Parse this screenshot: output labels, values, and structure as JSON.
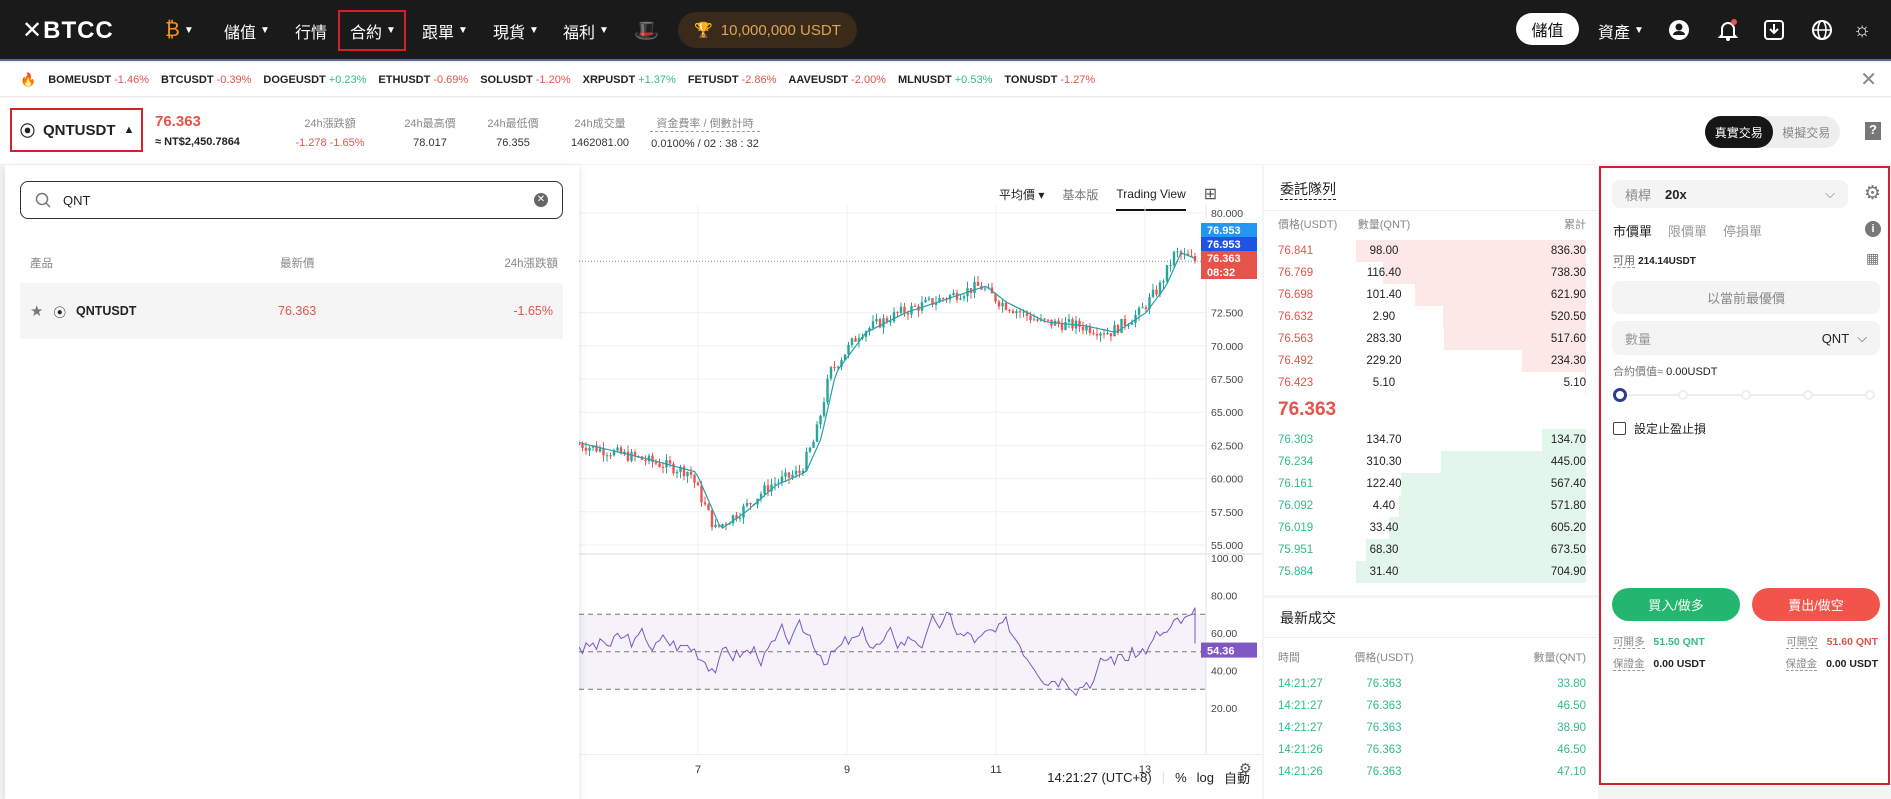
{
  "header": {
    "logo": "BTCC",
    "nav": [
      {
        "label": "儲值",
        "caret": true
      },
      {
        "label": "行情",
        "caret": false
      },
      {
        "label": "合約",
        "caret": true
      },
      {
        "label": "跟單",
        "caret": true
      },
      {
        "label": "現貨",
        "caret": true
      },
      {
        "label": "福利",
        "caret": true
      }
    ],
    "balance": "10,000,000 USDT",
    "deposit": "儲值",
    "assets": "資產",
    "icons": [
      "bitcoin-icon",
      "hat-icon",
      "user-icon",
      "bell-icon",
      "download-icon",
      "globe-icon",
      "sun-icon"
    ]
  },
  "ticker": [
    {
      "s": "BOMEUSDT",
      "c": "-1.46%"
    },
    {
      "s": "BTCUSDT",
      "c": "-0.39%"
    },
    {
      "s": "DOGEUSDT",
      "c": "+0.23%"
    },
    {
      "s": "ETHUSDT",
      "c": "-0.69%"
    },
    {
      "s": "SOLUSDT",
      "c": "-1.20%"
    },
    {
      "s": "XRPUSDT",
      "c": "+1.37%"
    },
    {
      "s": "FETUSDT",
      "c": "-2.86%"
    },
    {
      "s": "AAVEUSDT",
      "c": "-2.00%"
    },
    {
      "s": "MLNUSDT",
      "c": "+0.53%"
    },
    {
      "s": "TONUSDT",
      "c": "-1.27%"
    }
  ],
  "symbol": {
    "name": "QNTUSDT",
    "price": "76.363",
    "fiat": "≈ NT$2,450.7864",
    "stats": [
      {
        "label": "24h漲跌額",
        "value": "-1.278  -1.65%",
        "neg": true
      },
      {
        "label": "24h最高價",
        "value": "78.017"
      },
      {
        "label": "24h最低價",
        "value": "76.355"
      },
      {
        "label": "24h成交量",
        "value": "1462081.00"
      },
      {
        "label": "資金費率 / 倒數計時",
        "value": "0.0100% / 02 : 38 : 32"
      }
    ],
    "real": "真實交易",
    "demo": "模擬交易",
    "help": "?"
  },
  "dropdown": {
    "search_value": "QNT",
    "cols": [
      "產品",
      "最新價",
      "24h漲跌額"
    ],
    "rows": [
      {
        "name": "QNTUSDT",
        "price": "76.363",
        "change": "-1.65%"
      }
    ]
  },
  "chart": {
    "toolbar": [
      "平均價",
      "基本版",
      "Trading View"
    ],
    "price_ticks": [
      "80.000",
      "72.500",
      "70.000",
      "67.500",
      "65.000",
      "62.500",
      "60.000",
      "57.500",
      "55.000"
    ],
    "rsi_ticks": [
      "100.00",
      "80.00",
      "60.00",
      "40.00",
      "20.00"
    ],
    "date_ticks": [
      "7",
      "9",
      "11",
      "13"
    ],
    "tags": {
      "a": "76.953",
      "b": "76.953",
      "last": "76.363",
      "countdown": "08:32",
      "rsi": "54.36"
    },
    "time": "14:21:27 (UTC+8)",
    "pct": "%",
    "log": "log",
    "auto": "自動",
    "colors": {
      "up": "#26a69a",
      "down": "#ef5350",
      "rsi": "#7e57c2"
    }
  },
  "orderbook": {
    "title": "委託隊列",
    "cols": [
      "價格(USDT)",
      "數量(QNT)",
      "累計"
    ],
    "asks": [
      [
        "76.841",
        "98.00",
        "836.30"
      ],
      [
        "76.769",
        "116.40",
        "738.30"
      ],
      [
        "76.698",
        "101.40",
        "621.90"
      ],
      [
        "76.632",
        "2.90",
        "520.50"
      ],
      [
        "76.563",
        "283.30",
        "517.60"
      ],
      [
        "76.492",
        "229.20",
        "234.30"
      ],
      [
        "76.423",
        "5.10",
        "5.10"
      ]
    ],
    "mid": "76.363",
    "bids": [
      [
        "76.303",
        "134.70",
        "134.70"
      ],
      [
        "76.234",
        "310.30",
        "445.00"
      ],
      [
        "76.161",
        "122.40",
        "567.40"
      ],
      [
        "76.092",
        "4.40",
        "571.80"
      ],
      [
        "76.019",
        "33.40",
        "605.20"
      ],
      [
        "75.951",
        "68.30",
        "673.50"
      ],
      [
        "75.884",
        "31.40",
        "704.90"
      ]
    ]
  },
  "trades": {
    "title": "最新成交",
    "cols": [
      "時間",
      "價格(USDT)",
      "數量(QNT)"
    ],
    "rows": [
      [
        "14:21:27",
        "76.363",
        "33.80"
      ],
      [
        "14:21:27",
        "76.363",
        "46.50"
      ],
      [
        "14:21:27",
        "76.363",
        "38.90"
      ],
      [
        "14:21:26",
        "76.363",
        "46.50"
      ],
      [
        "14:21:26",
        "76.363",
        "47.10"
      ]
    ]
  },
  "order": {
    "leverage_label": "槓桿",
    "leverage": "20x",
    "tabs": [
      "市價單",
      "限價單",
      "停損單"
    ],
    "avail_label": "可用",
    "avail": "214.14USDT",
    "best_price": "以當前最優價",
    "qty_placeholder": "數量",
    "qty_unit": "QNT",
    "value_label": "合約價值≈",
    "value": "0.00USDT",
    "slider": 0,
    "tpsl": "設定止盈止損",
    "buy": "買入/做多",
    "sell": "賣出/做空",
    "long_label": "可開多",
    "long": "51.50 QNT",
    "short_label": "可開空",
    "short": "51.60 QNT",
    "margin_label": "保證金",
    "margin_long": "0.00 USDT",
    "margin_short": "0.00 USDT"
  }
}
